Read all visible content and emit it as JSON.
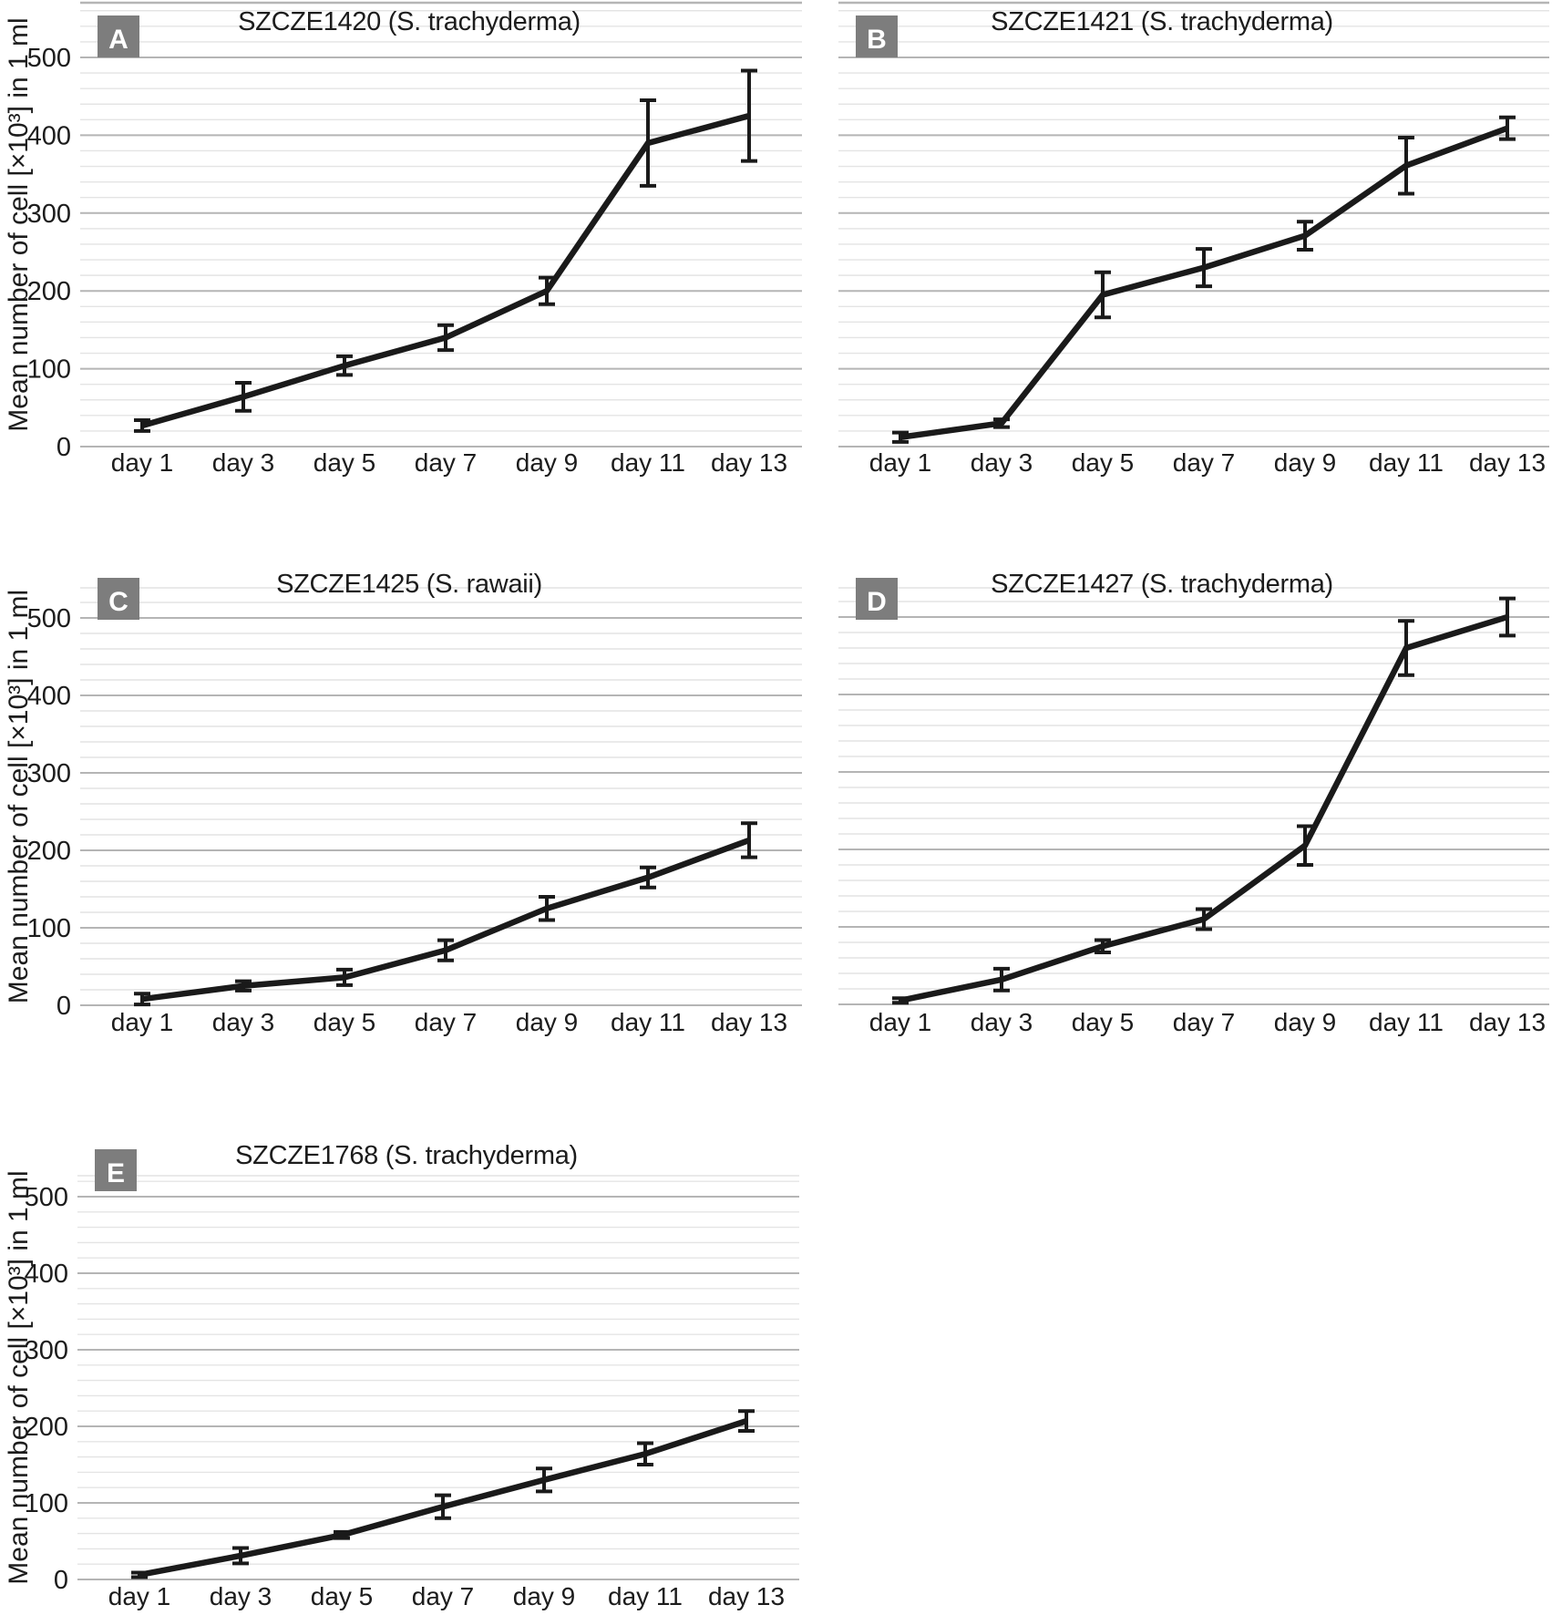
{
  "figure": {
    "y_axis_title": "Mean number of cell [×10³] in 1 ml",
    "y_tick_labels": [
      "0",
      "100",
      "200",
      "300",
      "400",
      "500"
    ],
    "colors": {
      "series_line": "#1a1a1a",
      "error_bar": "#1a1a1a",
      "grid_minor": "#e4e4e4",
      "grid_major": "#b5b5b5",
      "badge_background": "#7d7d7d",
      "badge_text": "#ffffff",
      "text": "#1c1c1c",
      "background": "#ffffff"
    }
  },
  "chart_data": [
    {
      "panel_label": "A",
      "title": "SZCZE1420 (S. trachyderma)",
      "type": "line",
      "categories": [
        "day 1",
        "day 3",
        "day 5",
        "day 7",
        "day 9",
        "day 11",
        "day 13"
      ],
      "values": [
        27,
        64,
        104,
        140,
        200,
        390,
        425
      ],
      "errors": [
        7,
        18,
        12,
        16,
        17,
        55,
        58
      ],
      "ylabel": "Mean number of cell [×10³] in 1 ml",
      "yticks": [
        0,
        100,
        200,
        300,
        400,
        500
      ],
      "ylim": [
        0,
        570
      ],
      "grid": "minor every 20, major every 100",
      "legend": "none",
      "has_y_axis_labels": true
    },
    {
      "panel_label": "B",
      "title": "SZCZE1421 (S. trachyderma)",
      "type": "line",
      "categories": [
        "day 1",
        "day 3",
        "day 5",
        "day 7",
        "day 9",
        "day 11",
        "day 13"
      ],
      "values": [
        12,
        30,
        195,
        230,
        271,
        361,
        409
      ],
      "errors": [
        6,
        5,
        29,
        24,
        18,
        36,
        14
      ],
      "ylabel": "",
      "yticks": [
        0,
        100,
        200,
        300,
        400,
        500
      ],
      "ylim": [
        0,
        570
      ],
      "grid": "minor every 20, major every 100",
      "legend": "none",
      "has_y_axis_labels": false
    },
    {
      "panel_label": "C",
      "title": "SZCZE1425 (S. rawaii)",
      "type": "line",
      "categories": [
        "day 1",
        "day 3",
        "day 5",
        "day 7",
        "day 9",
        "day 11",
        "day 13"
      ],
      "values": [
        8,
        25,
        36,
        71,
        125,
        165,
        213
      ],
      "errors": [
        7,
        6,
        10,
        13,
        15,
        13,
        22
      ],
      "ylabel": "Mean number of cell [×10³] in 1 ml",
      "yticks": [
        0,
        100,
        200,
        300,
        400,
        500
      ],
      "ylim": [
        0,
        538
      ],
      "grid": "minor every 20, major every 100",
      "legend": "none",
      "has_y_axis_labels": true
    },
    {
      "panel_label": "D",
      "title": "SZCZE1427 (S. trachyderma)",
      "type": "line",
      "categories": [
        "day 1",
        "day 3",
        "day 5",
        "day 7",
        "day 9",
        "day 11",
        "day 13"
      ],
      "values": [
        5,
        32,
        75,
        110,
        205,
        460,
        500
      ],
      "errors": [
        3,
        14,
        8,
        13,
        25,
        35,
        24
      ],
      "ylabel": "",
      "yticks": [
        0,
        100,
        200,
        300,
        400,
        500
      ],
      "ylim": [
        0,
        538
      ],
      "grid": "minor every 20, major every 100",
      "legend": "none",
      "has_y_axis_labels": false
    },
    {
      "panel_label": "E",
      "title": "SZCZE1768 (S. trachyderma)",
      "type": "line",
      "categories": [
        "day 1",
        "day 3",
        "day 5",
        "day 7",
        "day 9",
        "day 11",
        "day 13"
      ],
      "values": [
        6,
        31,
        58,
        95,
        130,
        164,
        207
      ],
      "errors": [
        3,
        10,
        4,
        15,
        15,
        14,
        13
      ],
      "ylabel": "Mean number of cell [×10³] in 1 ml",
      "yticks": [
        0,
        100,
        200,
        300,
        400,
        500
      ],
      "ylim": [
        0,
        527
      ],
      "grid": "minor every 20, major every 100",
      "legend": "none",
      "has_y_axis_labels": true
    }
  ]
}
